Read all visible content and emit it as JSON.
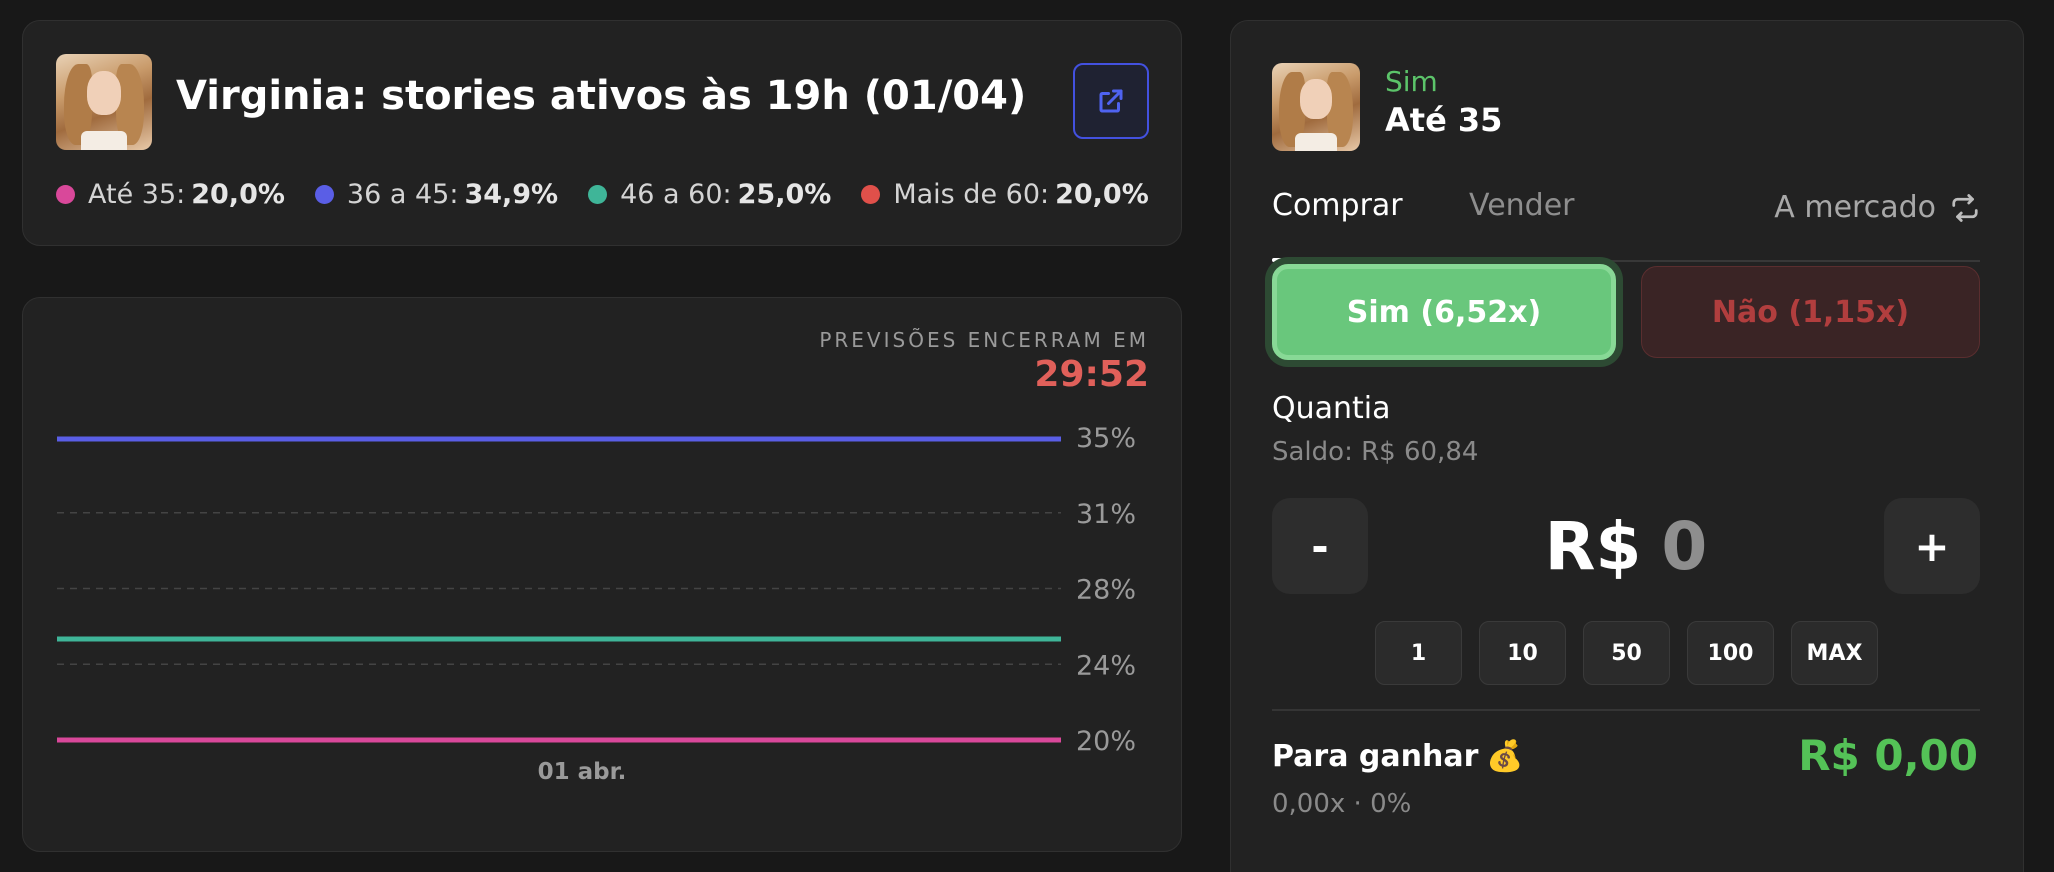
{
  "header": {
    "title": "Virginia: stories ativos às 19h (01/04)",
    "legend": [
      {
        "label": "Até 35:",
        "value": "20,0%",
        "color": "#d9489a"
      },
      {
        "label": "36 a 45:",
        "value": "34,9%",
        "color": "#5a5ee6"
      },
      {
        "label": "46 a 60:",
        "value": "25,0%",
        "color": "#3fb598"
      },
      {
        "label": "Mais de 60:",
        "value": "20,0%",
        "color": "#e0504a"
      }
    ],
    "icons": {
      "external_link": "external-link-icon"
    }
  },
  "countdown": {
    "label": "PREVISÕES ENCERRAM EM",
    "time": "29:52"
  },
  "chart_data": {
    "type": "line",
    "x": [
      "01 abr."
    ],
    "y_ticks": [
      "35%",
      "31%",
      "28%",
      "24%",
      "20%"
    ],
    "ylim": [
      20,
      35
    ],
    "grid": true,
    "series": [
      {
        "name": "36 a 45",
        "color": "#5a5ee6",
        "values": [
          34.9
        ]
      },
      {
        "name": "46 a 60",
        "color": "#3fb598",
        "values": [
          25.0
        ]
      },
      {
        "name": "Mais de 60",
        "color": "#e0504a",
        "values": [
          20.0
        ]
      },
      {
        "name": "Até 35",
        "color": "#d9489a",
        "values": [
          20.0
        ]
      }
    ]
  },
  "trade": {
    "side": "Sim",
    "outcome": "Até 35",
    "tabs": {
      "buy": "Comprar",
      "sell": "Vender"
    },
    "market": "A mercado",
    "yes_button": "Sim",
    "yes_odds": "(6,52x)",
    "no_button": "Não",
    "no_odds": "(1,15x)",
    "amount_label": "Quantia",
    "balance": "Saldo: R$ 60,84",
    "minus": "-",
    "plus": "+",
    "currency": "R$",
    "amount": "0",
    "quick_amounts": [
      "1",
      "10",
      "50",
      "100",
      "MAX"
    ],
    "to_win_label": "Para ganhar",
    "to_win_emoji": "💰",
    "to_win_value": "R$ 0,00",
    "to_win_sub": "0,00x · 0%",
    "colors": {
      "yes": "#69c77c",
      "no": "#b13e3e",
      "win": "#54c257"
    }
  }
}
